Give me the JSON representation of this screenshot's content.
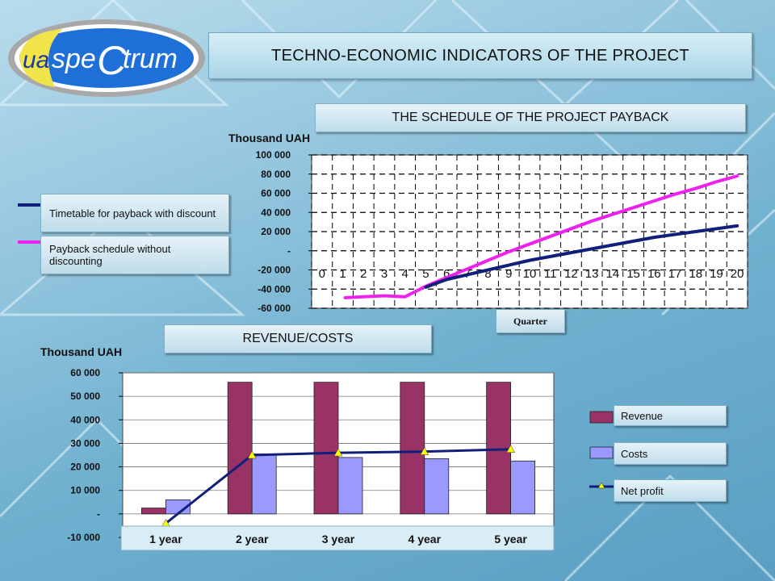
{
  "logo": {
    "text_a": "ua",
    "text_b": "spe",
    "text_c": "C",
    "text_d": "trum"
  },
  "title": "TECHNO-ECONOMIC INDICATORS OF THE PROJECT",
  "payback_box": "THE SCHEDULE OF THE PROJECT PAYBACK",
  "revenue_box": "REVENUE/COSTS",
  "quarter_label": "Quarter",
  "colors": {
    "discount": "#10207a",
    "nodiscount": "#ee22ee",
    "revenue": "#993366",
    "costs": "#9999ff",
    "net": "#10207a",
    "marker": "#ffff00"
  },
  "chart_data": [
    {
      "type": "line",
      "title": "THE SCHEDULE OF THE PROJECT PAYBACK",
      "ylabel": "Thousand UAH",
      "xlabel": "Quarter",
      "ylim": [
        -60000,
        100000
      ],
      "yticks": [
        {
          "v": 100000,
          "t": "100 000"
        },
        {
          "v": 80000,
          "t": "80 000"
        },
        {
          "v": 60000,
          "t": "60 000"
        },
        {
          "v": 40000,
          "t": "40 000"
        },
        {
          "v": 20000,
          "t": "20 000"
        },
        {
          "v": 0,
          "t": "-"
        },
        {
          "v": -20000,
          "t": "-20 000"
        },
        {
          "v": -40000,
          "t": "-40 000"
        },
        {
          "v": -60000,
          "t": "-60 000"
        }
      ],
      "categories": [
        "0",
        "1",
        "2",
        "3",
        "4",
        "5",
        "6",
        "7",
        "8",
        "9",
        "10",
        "11",
        "12",
        "13",
        "14",
        "15",
        "16",
        "17",
        "18",
        "19",
        "20"
      ],
      "grid": true,
      "series": [
        {
          "name": "Timetable for payback with discount",
          "x": [
            5,
            6,
            7,
            8,
            9,
            10,
            11,
            12,
            13,
            14,
            15,
            16,
            17,
            18,
            19,
            20
          ],
          "values": [
            -38000,
            -30000,
            -25000,
            -20000,
            -15000,
            -10000,
            -6000,
            -2000,
            2000,
            6000,
            10000,
            14000,
            17000,
            20000,
            23000,
            26000
          ]
        },
        {
          "name": "Payback schedule without discounting",
          "x": [
            1,
            2,
            3,
            4,
            5,
            6,
            7,
            8,
            9,
            10,
            11,
            12,
            13,
            14,
            15,
            16,
            17,
            18,
            19,
            20
          ],
          "values": [
            -49000,
            -48000,
            -47000,
            -48000,
            -37000,
            -28000,
            -19000,
            -10000,
            -1000,
            7000,
            15000,
            23000,
            31000,
            38000,
            45000,
            52000,
            59000,
            65000,
            72000,
            78000
          ]
        }
      ],
      "legend": [
        "Timetable for payback with discount",
        "Payback schedule without discounting"
      ],
      "legend_placement": "left"
    },
    {
      "type": "bar",
      "title": "REVENUE/COSTS",
      "ylabel": "Thousand UAH",
      "ylim": [
        -10000,
        60000
      ],
      "yticks": [
        {
          "v": 60000,
          "t": "60 000"
        },
        {
          "v": 50000,
          "t": "50 000"
        },
        {
          "v": 40000,
          "t": "40 000"
        },
        {
          "v": 30000,
          "t": "30 000"
        },
        {
          "v": 20000,
          "t": "20 000"
        },
        {
          "v": 10000,
          "t": "10 000"
        },
        {
          "v": 0,
          "t": "-"
        },
        {
          "v": -10000,
          "t": "-10 000"
        }
      ],
      "categories": [
        "1 year",
        "2 year",
        "3 year",
        "4 year",
        "5 year"
      ],
      "series": [
        {
          "name": "Revenue",
          "type": "bar",
          "values": [
            2500,
            56000,
            56000,
            56000,
            56000
          ]
        },
        {
          "name": "Costs",
          "type": "bar",
          "values": [
            6000,
            25500,
            24000,
            23500,
            22500
          ]
        },
        {
          "name": "Net profit",
          "type": "line",
          "values": [
            -4000,
            25000,
            26000,
            26500,
            27500
          ]
        }
      ],
      "legend": [
        "Revenue",
        "Costs",
        "Net profit"
      ],
      "legend_placement": "right"
    }
  ]
}
